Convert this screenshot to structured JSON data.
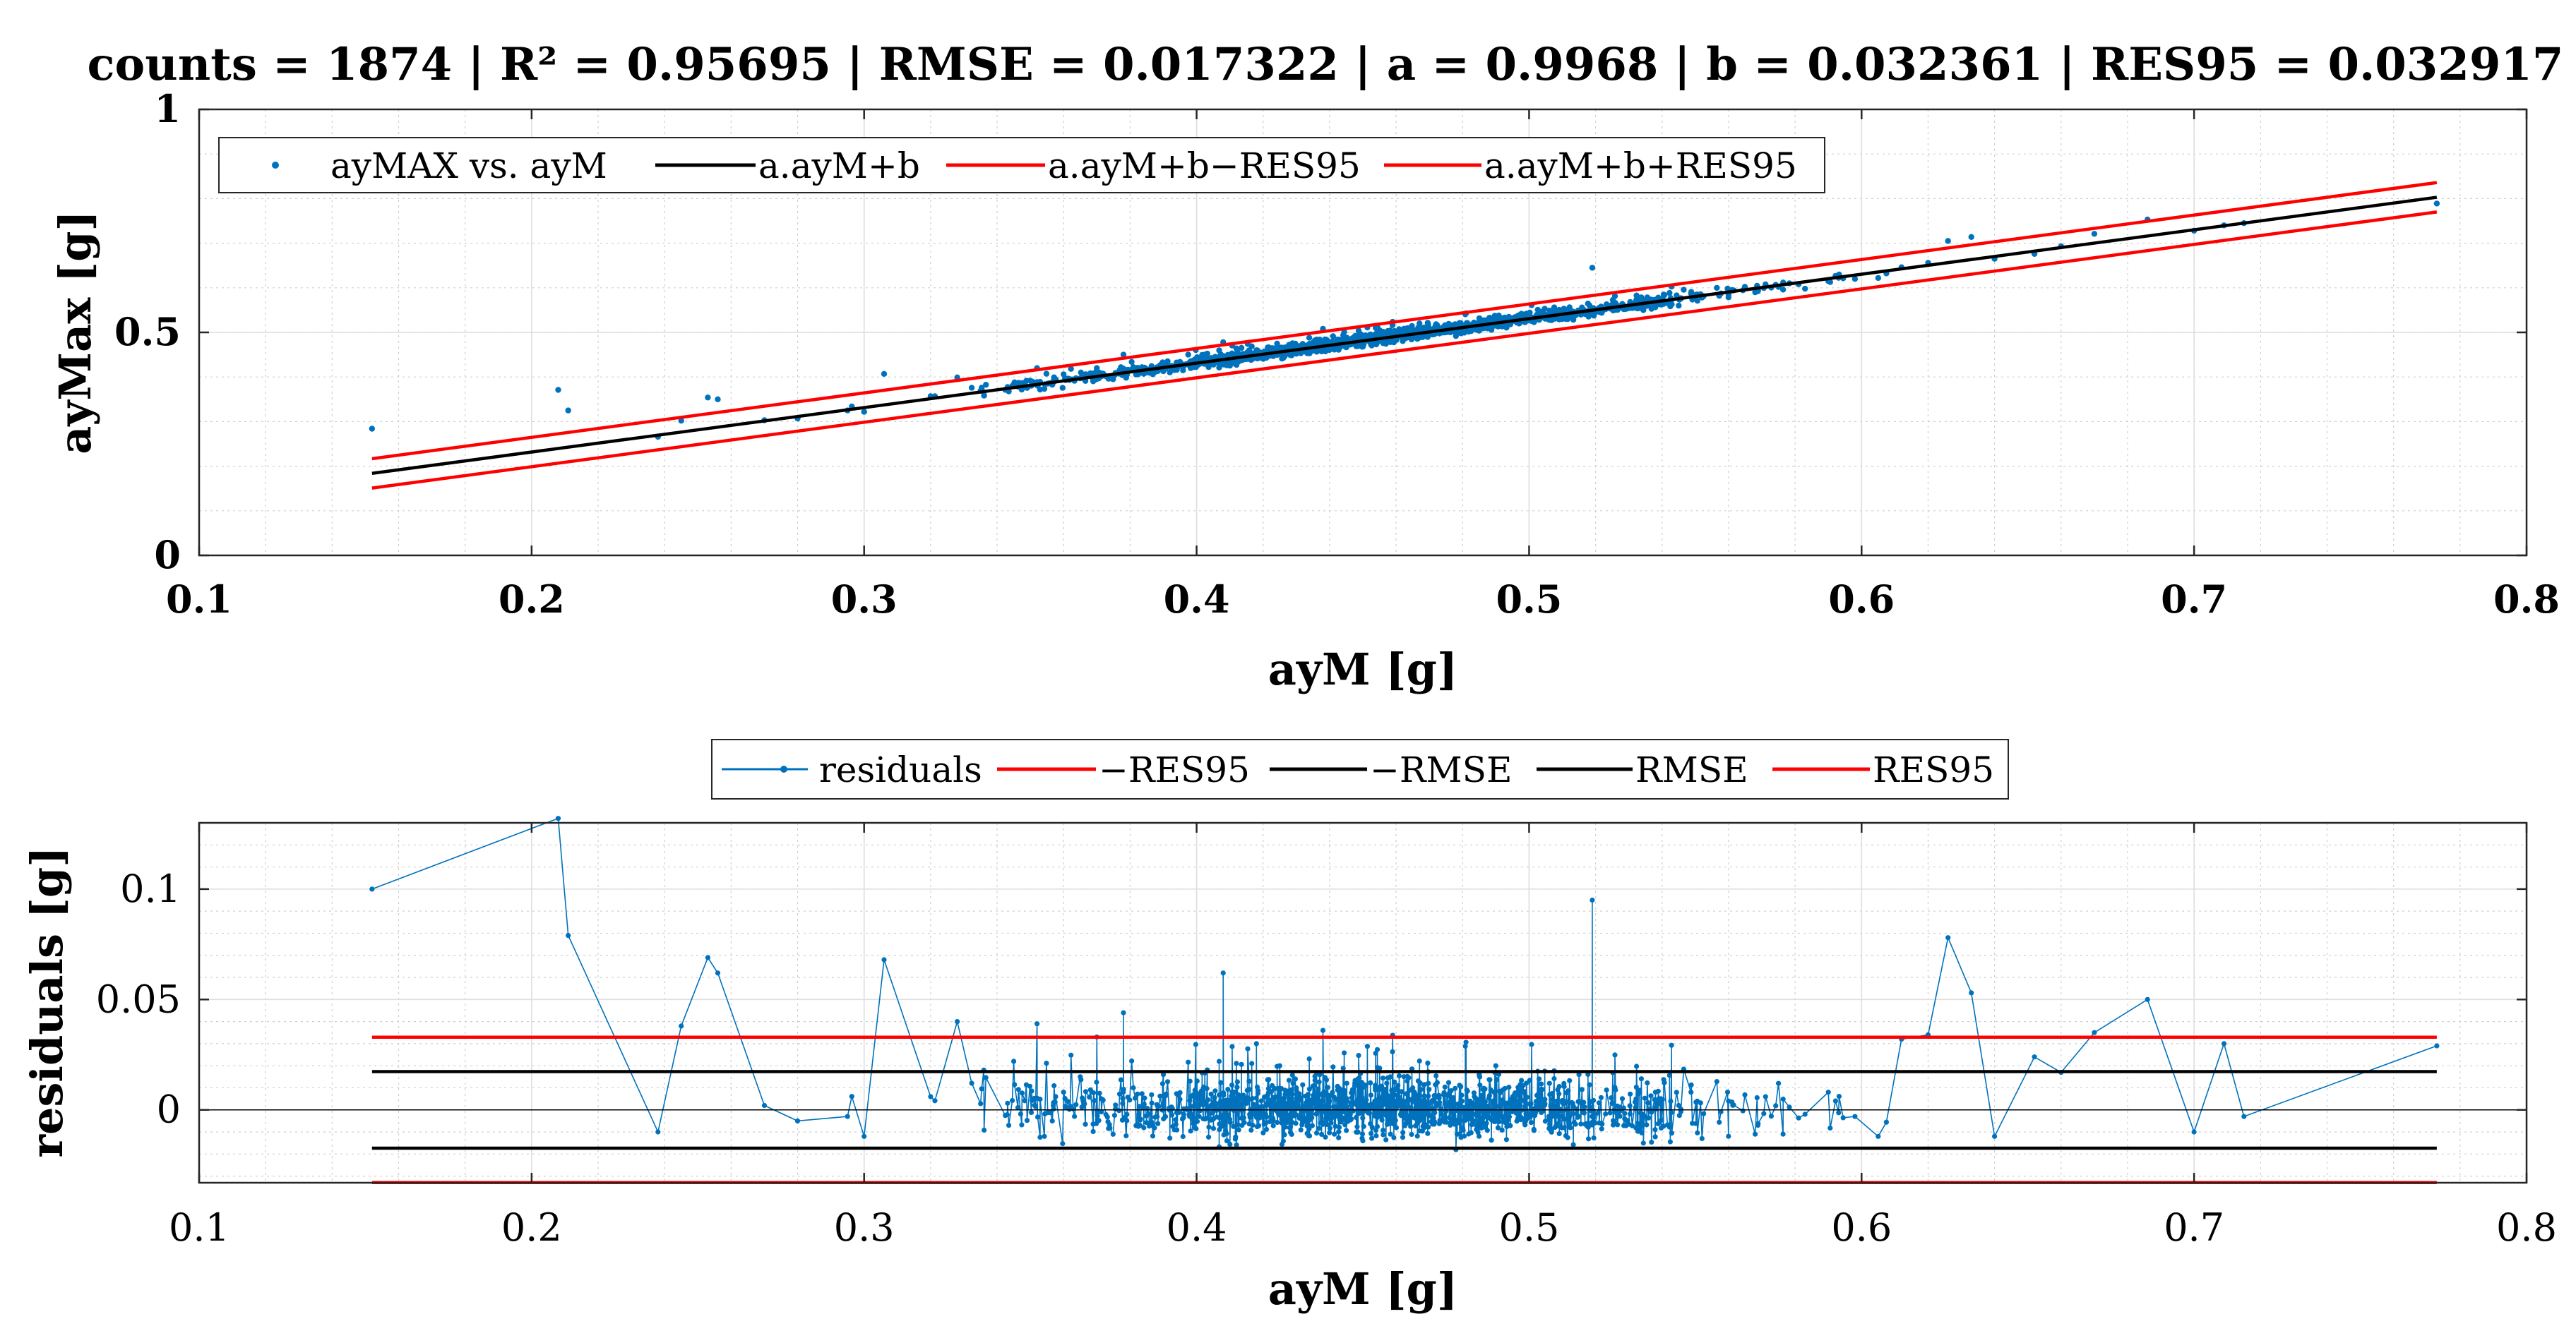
{
  "title": "counts = 1874 | R² = 0.95695 | RMSE = 0.017322 | a = 0.9968 | b = 0.032361 | RES95 = 0.032917",
  "chart_data": [
    {
      "type": "scatter",
      "name": "fit-plot",
      "xlabel": "ayM [g]",
      "ylabel": "ayMax [g]",
      "xlim": [
        0.1,
        0.8
      ],
      "ylim": [
        0,
        1
      ],
      "xticks": [
        "0.1",
        "0.2",
        "0.3",
        "0.4",
        "0.5",
        "0.6",
        "0.7",
        "0.8"
      ],
      "yticks": [
        "0",
        "0.5",
        "1"
      ],
      "grid": true,
      "legend_position": "top-left",
      "legend": [
        "ayMAX vs. ayM",
        "a.ayM+b",
        "a.ayM+b−RES95",
        "a.ayM+b+RES95"
      ],
      "fit": {
        "a": 0.9968,
        "b": 0.032361,
        "res95": 0.032917,
        "rmse": 0.017322,
        "x_range": [
          0.152,
          0.773
        ]
      },
      "scatter_sample": {
        "x": [
          0.152,
          0.208,
          0.211,
          0.238,
          0.245,
          0.253,
          0.256,
          0.27,
          0.28,
          0.295,
          0.3,
          0.306,
          0.32,
          0.328,
          0.336,
          0.345,
          0.352,
          0.36,
          0.365,
          0.37,
          0.378,
          0.383,
          0.39,
          0.398,
          0.402,
          0.408,
          0.415,
          0.418,
          0.425,
          0.43,
          0.438,
          0.444,
          0.45,
          0.455,
          0.46,
          0.465,
          0.472,
          0.478,
          0.485,
          0.49,
          0.497,
          0.503,
          0.51,
          0.515,
          0.519,
          0.525,
          0.532,
          0.538,
          0.545,
          0.552,
          0.56,
          0.568,
          0.575,
          0.583,
          0.59,
          0.598,
          0.605,
          0.612,
          0.62,
          0.626,
          0.633,
          0.64,
          0.652,
          0.66,
          0.67,
          0.686,
          0.7,
          0.709,
          0.715,
          0.773
        ],
        "y": [
          0.284,
          0.371,
          0.325,
          0.266,
          0.302,
          0.354,
          0.35,
          0.303,
          0.307,
          0.325,
          0.322,
          0.407,
          0.357,
          0.399,
          0.366,
          0.383,
          0.42,
          0.406,
          0.397,
          0.42,
          0.45,
          0.419,
          0.413,
          0.432,
          0.43,
          0.478,
          0.44,
          0.46,
          0.455,
          0.452,
          0.508,
          0.47,
          0.468,
          0.482,
          0.495,
          0.498,
          0.505,
          0.492,
          0.512,
          0.535,
          0.52,
          0.528,
          0.53,
          0.545,
          0.645,
          0.552,
          0.558,
          0.565,
          0.56,
          0.578,
          0.585,
          0.59,
          0.602,
          0.598,
          0.615,
          0.62,
          0.622,
          0.646,
          0.656,
          0.705,
          0.714,
          0.665,
          0.676,
          0.693,
          0.721,
          0.753,
          0.728,
          0.74,
          0.745,
          0.789
        ]
      }
    },
    {
      "type": "line",
      "name": "residuals-plot",
      "xlabel": "ayM [g]",
      "ylabel": "residuals [g]",
      "xlim": [
        0.1,
        0.8
      ],
      "ylim": [
        -0.033,
        0.13
      ],
      "xticks": [
        "0.1",
        "0.2",
        "0.3",
        "0.4",
        "0.5",
        "0.6",
        "0.7",
        "0.8"
      ],
      "yticks": [
        "0",
        "0.05",
        "0.1"
      ],
      "grid": true,
      "legend_position": "top-center",
      "legend": [
        "residuals",
        "−RES95",
        "−RMSE",
        "RMSE",
        "RES95"
      ],
      "reference_lines": {
        "res95": 0.032917,
        "rmse": 0.017322
      },
      "residual_sample": {
        "x": [
          0.152,
          0.208,
          0.211,
          0.238,
          0.245,
          0.253,
          0.256,
          0.27,
          0.28,
          0.295,
          0.3,
          0.306,
          0.32,
          0.328,
          0.336,
          0.345,
          0.352,
          0.36,
          0.365,
          0.37,
          0.378,
          0.383,
          0.39,
          0.398,
          0.402,
          0.408,
          0.415,
          0.418,
          0.425,
          0.43,
          0.438,
          0.444,
          0.45,
          0.455,
          0.46,
          0.465,
          0.472,
          0.478,
          0.485,
          0.49,
          0.497,
          0.503,
          0.51,
          0.515,
          0.519,
          0.525,
          0.532,
          0.538,
          0.545,
          0.552,
          0.56,
          0.568,
          0.575,
          0.583,
          0.59,
          0.598,
          0.605,
          0.612,
          0.62,
          0.626,
          0.633,
          0.64,
          0.652,
          0.66,
          0.67,
          0.686,
          0.7,
          0.709,
          0.715,
          0.773
        ],
        "y": [
          0.1,
          0.132,
          0.079,
          -0.01,
          0.038,
          0.069,
          0.062,
          0.002,
          -0.005,
          -0.003,
          -0.012,
          0.068,
          0.006,
          0.04,
          0.018,
          0.022,
          0.039,
          0.008,
          0.015,
          0.033,
          0.044,
          -0.007,
          0.016,
          0.013,
          -0.004,
          0.062,
          0.003,
          0.03,
          0.02,
          0.01,
          0.036,
          0.002,
          -0.014,
          0.01,
          0.004,
          0.01,
          0.003,
          -0.018,
          0.016,
          0.02,
          -0.002,
          0.014,
          -0.003,
          0.016,
          0.095,
          0.003,
          0.001,
          0.008,
          0.002,
          -0.013,
          0.004,
          -0.011,
          0.012,
          -0.002,
          0.008,
          -0.003,
          -0.012,
          0.032,
          0.034,
          0.078,
          0.053,
          -0.012,
          0.024,
          0.017,
          0.035,
          0.05,
          -0.01,
          0.03,
          -0.003,
          0.029
        ]
      }
    }
  ]
}
